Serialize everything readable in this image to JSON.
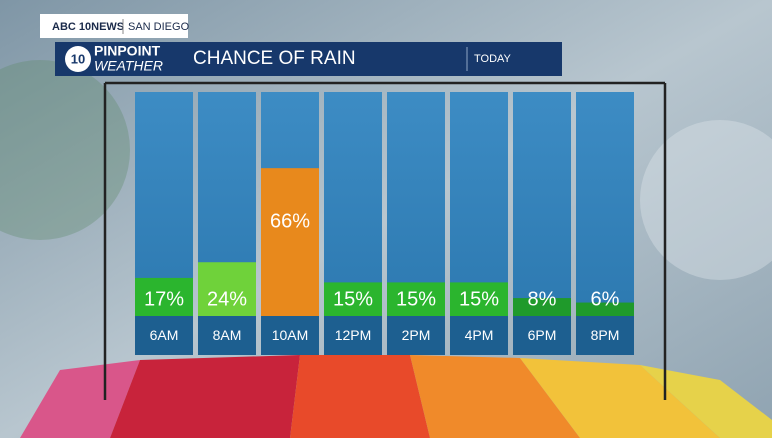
{
  "header": {
    "station": "ABC 10NEWS",
    "city": "SAN DIEGO",
    "logo_number": "10",
    "brand_top": "PINPOINT",
    "brand_bottom": "WEATHER",
    "period": "TODAY"
  },
  "chart_data": {
    "type": "bar",
    "title": "CHANCE OF RAIN",
    "categories": [
      "6AM",
      "8AM",
      "10AM",
      "12PM",
      "2PM",
      "4PM",
      "6PM",
      "8PM"
    ],
    "values": [
      17,
      24,
      66,
      15,
      15,
      15,
      8,
      6
    ],
    "value_labels": [
      "17%",
      "24%",
      "66%",
      "15%",
      "15%",
      "15%",
      "8%",
      "6%"
    ],
    "colors": [
      "#2bb52e",
      "#6fd23a",
      "#e8891c",
      "#2bb52e",
      "#2bb52e",
      "#2bb52e",
      "#1f9a2b",
      "#1f9a2b"
    ],
    "ylim": [
      0,
      100
    ]
  }
}
